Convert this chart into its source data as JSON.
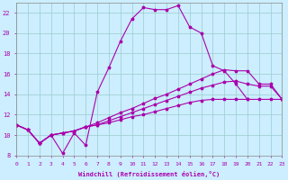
{
  "background_color": "#cceeff",
  "line_color": "#aa00aa",
  "grid_color": "#99cccc",
  "xlabel": "Windchill (Refroidissement éolien,°C)",
  "xlim": [
    0,
    23
  ],
  "ylim": [
    8,
    23
  ],
  "yticks": [
    8,
    10,
    12,
    14,
    16,
    18,
    20,
    22
  ],
  "s1_x": [
    0,
    1,
    2,
    3,
    4,
    5,
    6,
    7,
    8,
    9,
    10,
    11,
    12,
    13,
    14,
    15,
    16,
    17,
    18,
    19,
    20,
    21
  ],
  "s1_y": [
    11.0,
    10.5,
    9.2,
    10.0,
    8.2,
    10.2,
    9.0,
    14.2,
    16.6,
    19.2,
    21.4,
    22.5,
    22.3,
    22.3,
    22.7,
    20.6,
    20.0,
    16.8,
    16.3,
    15.0,
    13.5,
    null
  ],
  "s2_x": [
    0,
    1,
    2,
    3,
    4,
    5,
    6,
    7,
    8,
    9,
    10,
    11,
    12,
    13,
    14,
    15,
    16,
    17,
    18,
    19,
    20,
    21,
    22,
    23
  ],
  "s2_y": [
    11.0,
    10.5,
    9.2,
    10.0,
    10.2,
    10.4,
    10.8,
    11.2,
    11.7,
    12.2,
    12.6,
    13.1,
    13.6,
    14.0,
    14.5,
    15.0,
    15.5,
    16.0,
    16.4,
    16.3,
    16.3,
    15.0,
    15.0,
    13.5
  ],
  "s3_x": [
    0,
    1,
    2,
    3,
    4,
    5,
    6,
    7,
    8,
    9,
    10,
    11,
    12,
    13,
    14,
    15,
    16,
    17,
    18,
    19,
    20,
    21,
    22,
    23
  ],
  "s3_y": [
    11.0,
    10.5,
    9.2,
    10.0,
    10.2,
    10.4,
    10.8,
    11.0,
    11.4,
    11.8,
    12.2,
    12.6,
    13.0,
    13.4,
    13.8,
    14.2,
    14.6,
    14.9,
    15.2,
    15.3,
    15.0,
    14.8,
    14.8,
    13.5
  ],
  "s4_x": [
    0,
    1,
    2,
    3,
    4,
    5,
    6,
    7,
    8,
    9,
    10,
    11,
    12,
    13,
    14,
    15,
    16,
    17,
    18,
    19,
    20,
    21,
    22,
    23
  ],
  "s4_y": [
    11.0,
    10.5,
    9.2,
    10.0,
    10.2,
    10.4,
    10.8,
    11.0,
    11.2,
    11.5,
    11.8,
    12.0,
    12.3,
    12.6,
    12.9,
    13.2,
    13.4,
    13.5,
    13.5,
    13.5,
    13.5,
    13.5,
    13.5,
    13.5
  ],
  "marker_size": 2.5,
  "lw": 0.8,
  "tick_fontsize": 4.5,
  "xlabel_fontsize": 5.0
}
